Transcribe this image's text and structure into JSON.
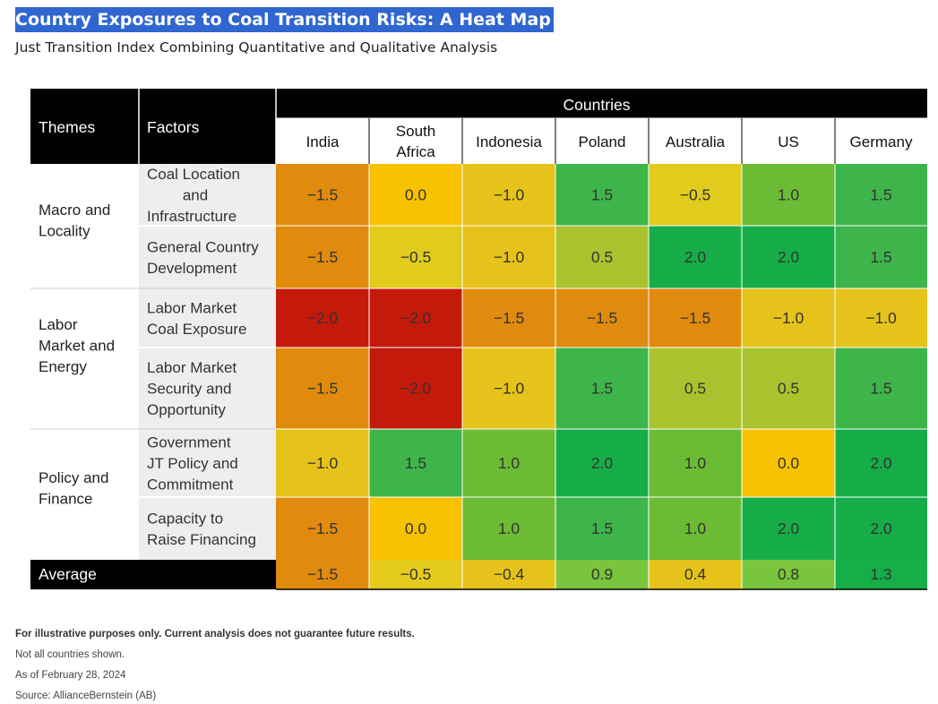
{
  "title": "Country Exposures to Coal Transition Risks: A Heat Map",
  "subtitle": "Just Transition Index Combining Quantitative and Qualitative Analysis",
  "chart_data": {
    "type": "heatmap",
    "header": {
      "themes": "Themes",
      "factors": "Factors",
      "countries": "Countries"
    },
    "columns": [
      "India",
      "South Africa",
      "Indonesia",
      "Poland",
      "Australia",
      "US",
      "Germany"
    ],
    "themes": [
      {
        "label": "Macro and Locality",
        "rows": [
          0,
          1
        ]
      },
      {
        "label": "Labor Market and Energy",
        "rows": [
          2,
          3
        ]
      },
      {
        "label": "Policy and Finance",
        "rows": [
          4,
          5
        ]
      }
    ],
    "factors": [
      "Coal Location and Infrastructure",
      "General Country Development",
      "Labor Market Coal Exposure",
      "Labor Market Security and Opportunity",
      "Government JT Policy and Commitment",
      "Capacity to Raise Financing"
    ],
    "values": [
      [
        -1.5,
        0.0,
        -1.0,
        1.5,
        -0.5,
        1.0,
        1.5
      ],
      [
        -1.5,
        -0.5,
        -1.0,
        0.5,
        2.0,
        2.0,
        1.5
      ],
      [
        -2.0,
        -2.0,
        -1.5,
        -1.5,
        -1.5,
        -1.0,
        -1.0
      ],
      [
        -1.5,
        -2.0,
        -1.0,
        1.5,
        0.5,
        0.5,
        1.5
      ],
      [
        -1.0,
        1.5,
        1.0,
        2.0,
        1.0,
        0.0,
        2.0
      ],
      [
        -1.5,
        0.0,
        1.0,
        1.5,
        1.0,
        2.0,
        2.0
      ]
    ],
    "average": {
      "label": "Average",
      "values": [
        -1.5,
        -0.5,
        -0.4,
        0.9,
        0.4,
        0.8,
        1.3
      ]
    },
    "color_scale": {
      "-2.0": "#c41a0b",
      "-1.5": "#e08b0e",
      "-1.0": "#e6c31a",
      "-0.5": "#e1cb1c",
      "0.0": "#f8c200",
      "0.5": "#a9c32e",
      "1.0": "#6cbb35",
      "1.5": "#3db54a",
      "2.0": "#16ad48"
    },
    "average_colors": {
      "-1.5": "#e08b0e",
      "-0.5": "#e5cb1d",
      "-0.4": "#e6c31a",
      "0.9": "#79c53c",
      "0.4": "#e6c31a",
      "0.8": "#79c53c",
      "1.3": "#15ae49"
    }
  },
  "footnotes": {
    "bold": "For illustrative purposes only. Current analysis does not guarantee future results.",
    "lines": [
      "Not all countries shown.",
      "As of February 28, 2024",
      "Source: AllianceBernstein (AB)"
    ]
  }
}
